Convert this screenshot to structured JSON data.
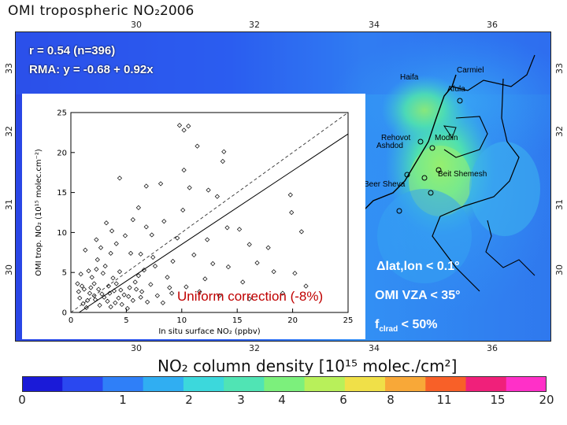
{
  "map": {
    "title": "OMI tropospheric NO₂",
    "year": "2006",
    "lon_ticks": [
      "30",
      "32",
      "34",
      "36"
    ],
    "lat_ticks": [
      "33",
      "32",
      "31",
      "30"
    ],
    "stats_line1": "r = 0.54 (n=396)",
    "stats_line2": "RMA: y = -0.68 + 0.92x",
    "cities": [
      "Carmiel",
      "Haifa",
      "Afula",
      "Rehovot",
      "Ashdod",
      "Modiin",
      "Beit Shemesh",
      "Beer Sheva"
    ],
    "annotations": {
      "dlat": "Δlat,lon < 0.1°",
      "vza": "OMI VZA < 35°",
      "fclrad": "f",
      "fclrad_sub": "clrad",
      "fclrad_rest": " < 50%",
      "uniform": "Uniform correction (-8%)"
    }
  },
  "colorbar": {
    "label_prefix": "NO₂  column  density",
    "label_units": "[10¹⁵  molec./cm²]",
    "ticks": [
      "0",
      "1",
      "2",
      "3",
      "4",
      "6",
      "8",
      "11",
      "15",
      "20"
    ],
    "colors": [
      "#1a1ad8",
      "#2a48f0",
      "#2f7ff8",
      "#30aef2",
      "#3cd8dc",
      "#50e4b4",
      "#7cf07c",
      "#b8f05a",
      "#f0e048",
      "#f8a838",
      "#f86028",
      "#f0207a",
      "#ff30c8"
    ]
  },
  "chart_data": {
    "type": "scatter",
    "title": "",
    "xlabel": "In situ surface NO₂ (ppbv)",
    "ylabel": "OMI trop. NO₂ (10¹⁵ molec.cm⁻²)",
    "xlim": [
      0,
      25
    ],
    "ylim": [
      0,
      25
    ],
    "xticks": [
      0,
      5,
      10,
      15,
      20,
      25
    ],
    "yticks": [
      0,
      5,
      10,
      15,
      20,
      25
    ],
    "one_to_one_line": true,
    "fit_line": {
      "intercept": -0.68,
      "slope": 0.92
    },
    "points": [
      [
        9.8,
        23.4
      ],
      [
        10.6,
        23.3
      ],
      [
        10.2,
        22.8
      ],
      [
        11.4,
        20.8
      ],
      [
        13.8,
        20.1
      ],
      [
        13.7,
        18.9
      ],
      [
        10.2,
        17.8
      ],
      [
        6.8,
        15.8
      ],
      [
        4.4,
        16.8
      ],
      [
        8.1,
        16.1
      ],
      [
        10.7,
        15.6
      ],
      [
        12.4,
        15.3
      ],
      [
        13.2,
        14.5
      ],
      [
        19.8,
        14.7
      ],
      [
        19.9,
        12.5
      ],
      [
        20.8,
        10.1
      ],
      [
        20.2,
        4.9
      ],
      [
        10.1,
        12.8
      ],
      [
        6.1,
        13.1
      ],
      [
        14.1,
        10.6
      ],
      [
        16.1,
        8.5
      ],
      [
        15.2,
        10.4
      ],
      [
        17.8,
        8.1
      ],
      [
        8.4,
        11.4
      ],
      [
        5.6,
        11.6
      ],
      [
        3.2,
        11.2
      ],
      [
        7.3,
        9.7
      ],
      [
        9.6,
        9.3
      ],
      [
        12.3,
        9.1
      ],
      [
        2.3,
        9.1
      ],
      [
        4.1,
        8.6
      ],
      [
        3.6,
        7.4
      ],
      [
        5.4,
        7.4
      ],
      [
        6.3,
        7.3
      ],
      [
        7.4,
        6.9
      ],
      [
        9.2,
        6.4
      ],
      [
        11.1,
        7.2
      ],
      [
        12.8,
        6.1
      ],
      [
        14.2,
        5.7
      ],
      [
        16.8,
        6.2
      ],
      [
        18.3,
        5.1
      ],
      [
        15.5,
        3.8
      ],
      [
        12.1,
        4.2
      ],
      [
        10.4,
        3.2
      ],
      [
        8.7,
        4.4
      ],
      [
        7.2,
        3.5
      ],
      [
        6.1,
        4.6
      ],
      [
        5.3,
        3.1
      ],
      [
        4.4,
        5.1
      ],
      [
        3.8,
        4.3
      ],
      [
        3.1,
        5.8
      ],
      [
        2.4,
        6.6
      ],
      [
        1.6,
        5.2
      ],
      [
        2.1,
        3.6
      ],
      [
        1.2,
        2.9
      ],
      [
        0.8,
        1.8
      ],
      [
        1.1,
        1.1
      ],
      [
        1.7,
        2.4
      ],
      [
        2.2,
        1.6
      ],
      [
        2.8,
        2.3
      ],
      [
        3.3,
        1.4
      ],
      [
        3.9,
        2.7
      ],
      [
        4.3,
        1.8
      ],
      [
        4.8,
        2.2
      ],
      [
        5.6,
        1.5
      ],
      [
        6.4,
        2.6
      ],
      [
        6.9,
        1.3
      ],
      [
        7.8,
        2.1
      ],
      [
        8.3,
        1.2
      ],
      [
        9.1,
        2.4
      ],
      [
        1.4,
        0.6
      ],
      [
        2.6,
        0.9
      ],
      [
        3.6,
        0.7
      ],
      [
        4.6,
        1.0
      ],
      [
        5.1,
        0.5
      ],
      [
        0.6,
        3.6
      ],
      [
        1.9,
        4.4
      ],
      [
        2.9,
        4.9
      ],
      [
        3.4,
        3.3
      ],
      [
        4.1,
        3.6
      ],
      [
        5.9,
        2.9
      ],
      [
        6.6,
        5.3
      ],
      [
        7.6,
        5.8
      ],
      [
        8.9,
        3.1
      ],
      [
        11.6,
        2.6
      ],
      [
        13.4,
        2.1
      ],
      [
        16.1,
        1.7
      ],
      [
        19.1,
        2.4
      ],
      [
        21.2,
        3.3
      ],
      [
        1.3,
        7.8
      ],
      [
        2.7,
        8.1
      ],
      [
        0.9,
        4.8
      ],
      [
        4.9,
        9.6
      ],
      [
        3.7,
        10.2
      ],
      [
        6.8,
        10.7
      ],
      [
        2.1,
        2.1
      ],
      [
        2.5,
        2.9
      ],
      [
        1.5,
        1.5
      ],
      [
        1.8,
        3.1
      ],
      [
        3.0,
        1.9
      ],
      [
        3.5,
        2.4
      ],
      [
        4.0,
        1.2
      ],
      [
        4.5,
        2.8
      ],
      [
        5.2,
        2.0
      ],
      [
        5.8,
        3.8
      ],
      [
        6.3,
        1.9
      ],
      [
        0.7,
        2.6
      ],
      [
        1.0,
        3.3
      ],
      [
        2.3,
        5.4
      ]
    ]
  }
}
